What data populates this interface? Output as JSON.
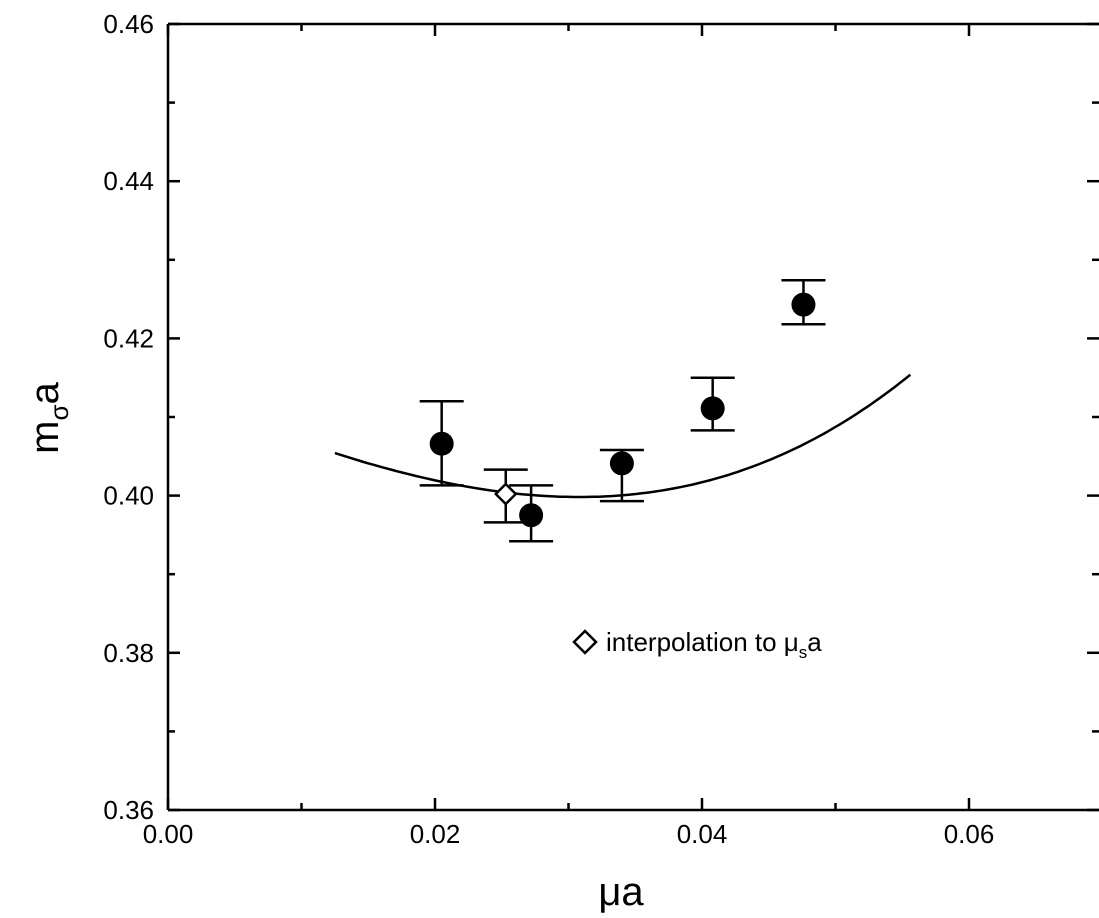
{
  "chart_data": {
    "type": "scatter",
    "title": "",
    "xlabel": "μa",
    "ylabel": {
      "main": "m",
      "sub": "σ",
      "tail": "a"
    },
    "xlim": [
      0.0,
      0.07
    ],
    "ylim": [
      0.36,
      0.46
    ],
    "x_ticks": [
      0.0,
      0.02,
      0.04,
      0.06
    ],
    "x_tick_labels": [
      "0.00",
      "0.02",
      "0.04",
      "0.06"
    ],
    "y_ticks": [
      0.36,
      0.38,
      0.4,
      0.42,
      0.44,
      0.46
    ],
    "y_tick_labels": [
      "0.36",
      "0.38",
      "0.40",
      "0.42",
      "0.44",
      "0.46"
    ],
    "grid": false,
    "series": [
      {
        "marker": "filled-circle",
        "points": [
          {
            "x": 0.0205,
            "y": 0.4066,
            "err_lo": 0.4013,
            "err_hi": 0.412
          },
          {
            "x": 0.0272,
            "y": 0.3975,
            "err_lo": 0.3942,
            "err_hi": 0.4013
          },
          {
            "x": 0.034,
            "y": 0.4041,
            "err_lo": 0.3993,
            "err_hi": 0.4058
          },
          {
            "x": 0.0408,
            "y": 0.4111,
            "err_lo": 0.4083,
            "err_hi": 0.415
          },
          {
            "x": 0.0476,
            "y": 0.4243,
            "err_lo": 0.4218,
            "err_hi": 0.4274
          }
        ]
      },
      {
        "name": "interpolation to μ",
        "marker": "open-diamond",
        "points": [
          {
            "x": 0.0253,
            "y": 0.4002,
            "err_lo": 0.3966,
            "err_hi": 0.4033
          }
        ]
      }
    ],
    "fit_curve": {
      "x_range": [
        0.0125,
        0.0556
      ],
      "model": "y = 0.39982 + 20.34*(x-0.0308)^2 + 200*(x-0.0308)^3"
    },
    "legend": {
      "placement": "lower-right",
      "label_main": "interpolation to μ",
      "label_sub": "s",
      "label_tail": "a"
    }
  }
}
